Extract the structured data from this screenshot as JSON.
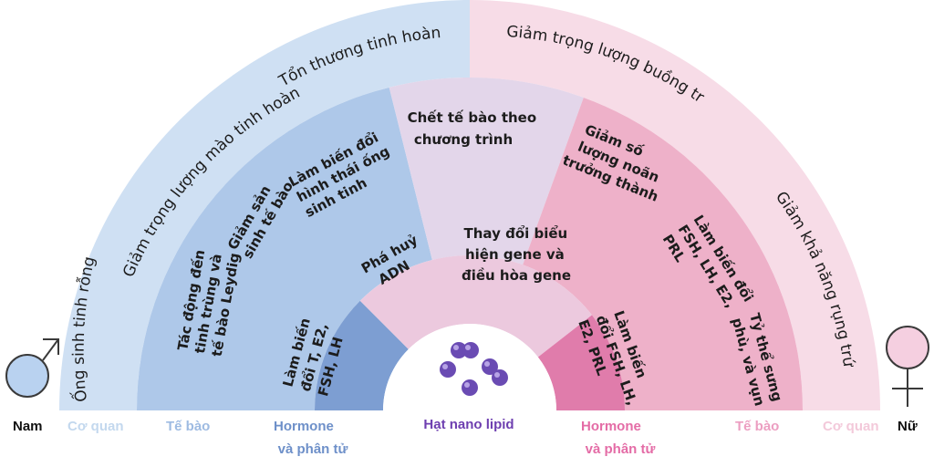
{
  "colors": {
    "male_outer": "#cfe0f3",
    "male_cell": "#aec8e9",
    "male_hormone": "#7d9ed2",
    "female_outer": "#f7dce7",
    "female_cell": "#eeb1c9",
    "female_hormone": "#e07cab",
    "center_top": "#e3d6ea",
    "center_inner": "#ecc9de",
    "particle": "#6a4bb3"
  },
  "left": {
    "gender": "Nam",
    "symbol": "male-symbol",
    "organ_label": "Cơ quan",
    "cell_label": "Tế bào",
    "hormone_label": [
      "Hormone",
      "và phân tử"
    ],
    "organ_items": [
      "Ống sinh tinh rỗng",
      "Giảm trọng lượng mào tinh hoàn",
      "Tổn thương tinh hoàn"
    ],
    "cell_items": [
      [
        "Tác động đến",
        "tinh trùng và",
        "tế bào Leydig"
      ],
      [
        "Giảm sản",
        "sinh tế bào"
      ],
      [
        "Làm biến đổi",
        "hình thái ống",
        "sinh tinh"
      ]
    ],
    "hormone_item": [
      "Làm biến",
      "đổi T, E2,",
      "FSH, LH"
    ]
  },
  "center": {
    "label": "Hạt nano lipid",
    "top_item": [
      "Chết tế bào theo",
      "chương trình"
    ],
    "inner_left": [
      "Phá huỷ",
      "ADN"
    ],
    "inner_right": [
      "Thay đổi biểu",
      "hiện gene và",
      "điều hòa gene"
    ]
  },
  "right": {
    "gender": "Nữ",
    "symbol": "female-symbol",
    "organ_label": "Cơ quan",
    "cell_label": "Tế bào",
    "hormone_label": [
      "Hormone",
      "và phân tử"
    ],
    "organ_items": [
      "Giảm trọng lượng buồng trứng",
      "Giảm khả năng rụng trứng"
    ],
    "cell_items": [
      [
        "Giảm số",
        "lượng noãn",
        "trưởng thành"
      ],
      [
        "Làm biến đổi",
        "FSH, LH, E2,",
        "PRL"
      ],
      [
        "Tỷ thể sưng",
        "phù, và vụn"
      ]
    ],
    "hormone_item": [
      "Làm biến",
      "đổi FSH, LH,",
      "E2, PRL"
    ]
  }
}
